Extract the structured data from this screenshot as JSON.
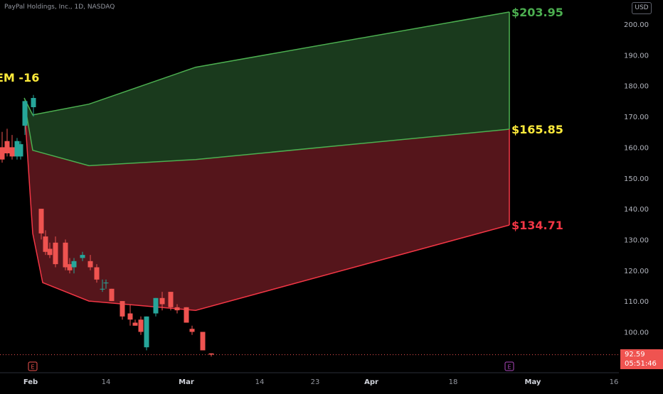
{
  "header": {
    "symbol_title": "PayPal Holdings, Inc., 1D, NASDAQ",
    "currency_label": "USD"
  },
  "annotation": {
    "em_label": "EM -16"
  },
  "last_price": {
    "value": "92.59",
    "countdown": "05:51:46"
  },
  "colors": {
    "background": "#000000",
    "up": "#26a69a",
    "down": "#ef5350",
    "green_zone": "#1b3d1f",
    "red_zone": "#5a161c",
    "green_line": "#4caf50",
    "red_line": "#f23645",
    "yellow": "#ffeb3b"
  },
  "chart_data": {
    "type": "candlestick",
    "y_axis": {
      "range": [
        87,
        208
      ],
      "ticks": [
        "100.00",
        "110.00",
        "120.00",
        "130.00",
        "140.00",
        "150.00",
        "160.00",
        "170.00",
        "180.00",
        "190.00",
        "200.00"
      ]
    },
    "x_axis": {
      "ticks": [
        {
          "label": "Feb",
          "bold": true
        },
        {
          "label": "14",
          "bold": false
        },
        {
          "label": "Mar",
          "bold": true
        },
        {
          "label": "14",
          "bold": false
        },
        {
          "label": "23",
          "bold": false
        },
        {
          "label": "Apr",
          "bold": true
        },
        {
          "label": "18",
          "bold": false
        },
        {
          "label": "May",
          "bold": true
        },
        {
          "label": "16",
          "bold": false
        }
      ]
    },
    "earnings_markers": [
      {
        "label": "E",
        "color": "#ef5350"
      },
      {
        "label": "E",
        "color": "#ab47bc"
      }
    ],
    "candles": [
      {
        "o": 160,
        "h": 165,
        "l": 155,
        "c": 156
      },
      {
        "o": 162,
        "h": 166,
        "l": 157,
        "c": 158
      },
      {
        "o": 160,
        "h": 164,
        "l": 156,
        "c": 157
      },
      {
        "o": 157,
        "h": 163,
        "l": 156,
        "c": 162
      },
      {
        "o": 157,
        "h": 162,
        "l": 156,
        "c": 161
      },
      {
        "o": 167,
        "h": 175,
        "l": 164,
        "c": 175
      },
      {
        "o": 173,
        "h": 177,
        "l": 170,
        "c": 176
      },
      {
        "o": 140,
        "h": 140,
        "l": 130,
        "c": 132
      },
      {
        "o": 131,
        "h": 133,
        "l": 125,
        "c": 126
      },
      {
        "o": 127,
        "h": 129,
        "l": 124,
        "c": 125
      },
      {
        "o": 129,
        "h": 131,
        "l": 121,
        "c": 122
      },
      {
        "o": 129,
        "h": 130,
        "l": 120,
        "c": 121
      },
      {
        "o": 122,
        "h": 124,
        "l": 119,
        "c": 120
      },
      {
        "o": 121,
        "h": 124,
        "l": 119,
        "c": 123
      },
      {
        "o": 124,
        "h": 126,
        "l": 123,
        "c": 125
      },
      {
        "o": 123,
        "h": 125,
        "l": 120,
        "c": 121
      },
      {
        "o": 121,
        "h": 122,
        "l": 116,
        "c": 117
      },
      {
        "o": 114,
        "h": 117,
        "l": 113,
        "c": 114
      },
      {
        "o": 116,
        "h": 117,
        "l": 114,
        "c": 116
      },
      {
        "o": 114,
        "h": 114,
        "l": 110,
        "c": 110
      },
      {
        "o": 110,
        "h": 110,
        "l": 104,
        "c": 105
      },
      {
        "o": 106,
        "h": 109,
        "l": 102,
        "c": 104
      },
      {
        "o": 103,
        "h": 104,
        "l": 102,
        "c": 102
      },
      {
        "o": 104,
        "h": 105,
        "l": 99,
        "c": 100
      },
      {
        "o": 95,
        "h": 105,
        "l": 94,
        "c": 105
      },
      {
        "o": 106,
        "h": 111,
        "l": 105,
        "c": 111
      },
      {
        "o": 111,
        "h": 113,
        "l": 107,
        "c": 109
      },
      {
        "o": 113,
        "h": 113,
        "l": 107,
        "c": 108
      },
      {
        "o": 108,
        "h": 109,
        "l": 106,
        "c": 107
      },
      {
        "o": 108,
        "h": 108,
        "l": 103,
        "c": 103
      },
      {
        "o": 101,
        "h": 102,
        "l": 99,
        "c": 100
      },
      {
        "o": 100,
        "h": 100,
        "l": 94,
        "c": 94
      },
      {
        "o": 93,
        "h": 93,
        "l": 92,
        "c": 92.6
      }
    ],
    "zones": {
      "upper_green": [
        203.95,
        186,
        174,
        170.5,
        176
      ],
      "mid_line": [
        165.85,
        156,
        154,
        159,
        175
      ],
      "lower_red": [
        134.71,
        107,
        110,
        116,
        132,
        174
      ]
    },
    "levels": [
      {
        "price": "$203.95",
        "color": "#4caf50"
      },
      {
        "price": "$165.85",
        "color": "#ffeb3b"
      },
      {
        "price": "$134.71",
        "color": "#f23645"
      }
    ]
  }
}
